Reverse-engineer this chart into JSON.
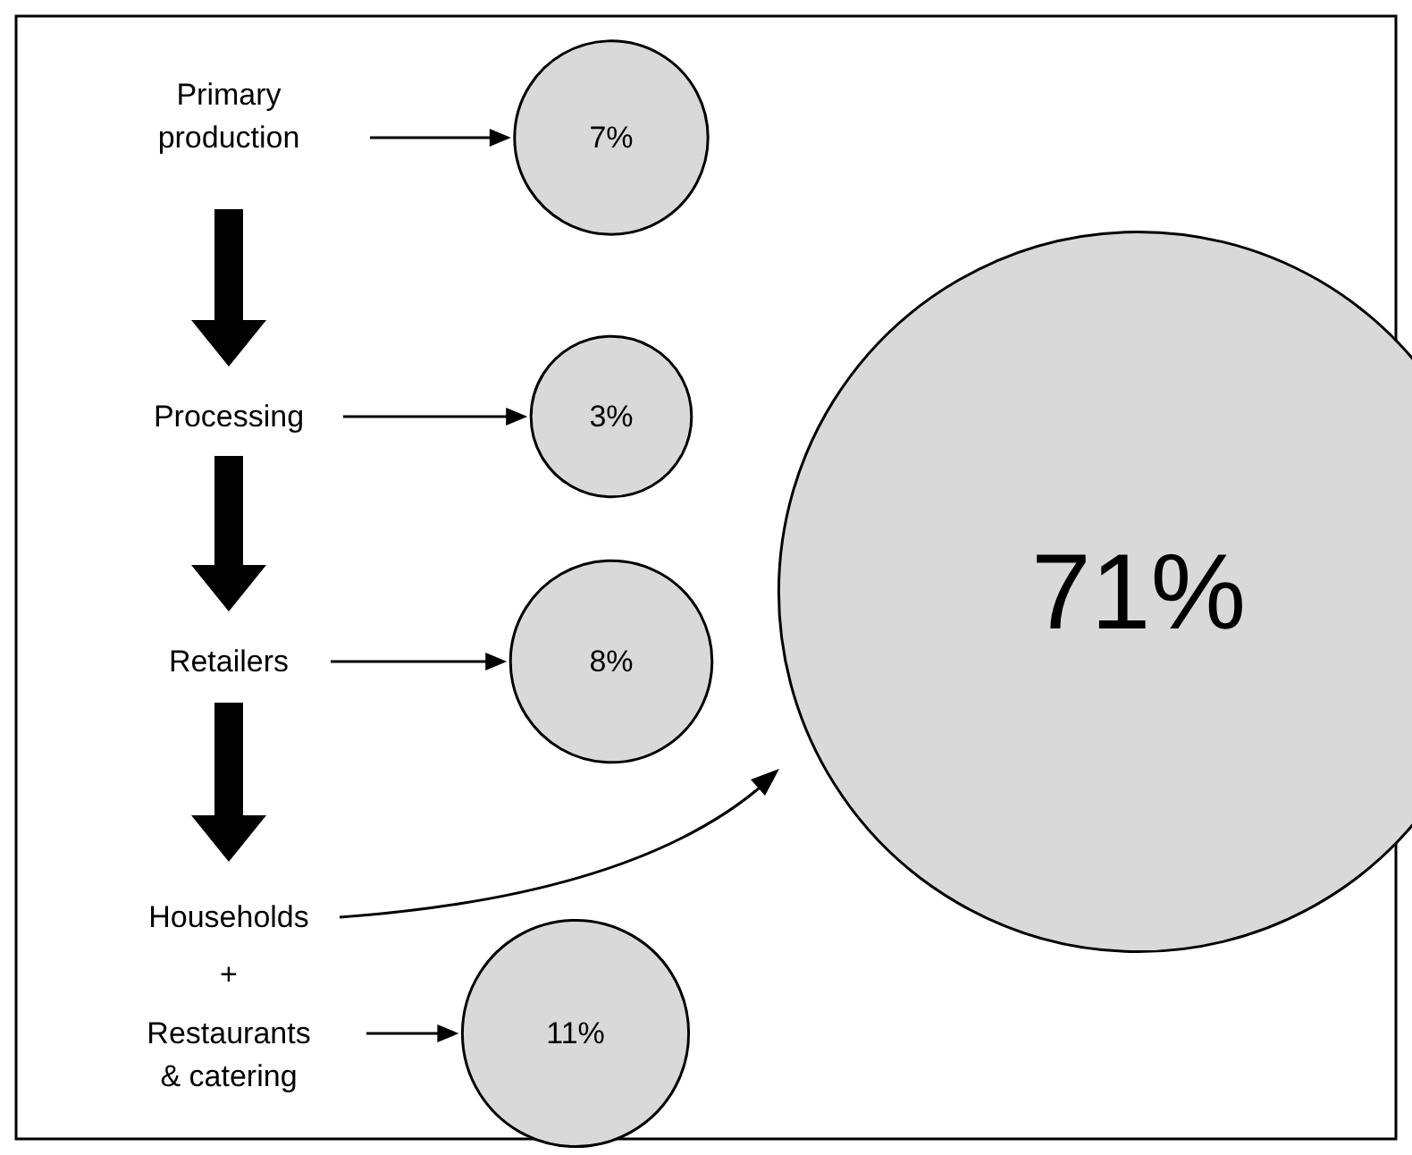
{
  "chart_data": {
    "type": "other",
    "categories": [
      "Primary\nproduction",
      "Processing",
      "Retailers",
      "Households",
      "Restaurants\n& catering"
    ],
    "values": [
      7,
      3,
      8,
      71,
      11
    ],
    "value_labels": [
      "7%",
      "3%",
      "8%",
      "71%",
      "11%"
    ],
    "color": "#d9d9d9",
    "annotations": [
      "+"
    ]
  }
}
